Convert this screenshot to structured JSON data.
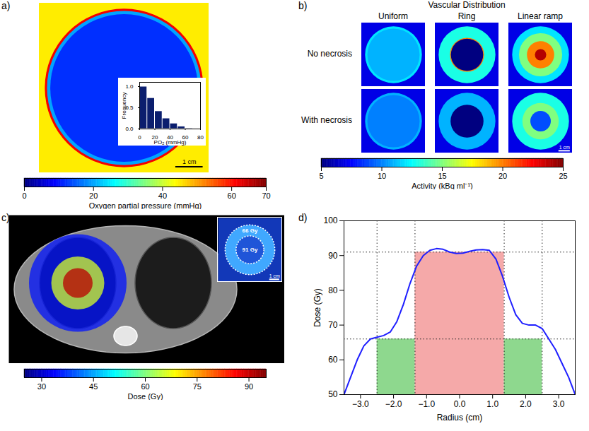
{
  "chart_data": [
    {
      "panel": "a)",
      "type": "heatmap",
      "background": 45,
      "rings": [
        {
          "r": 2.9,
          "v": 62
        },
        {
          "r": 2.82,
          "v": 20
        },
        {
          "r": 2.7,
          "v": 12
        }
      ],
      "colorbar": {
        "label": "Oxygen partial pressure (mmHg)",
        "range": [
          0,
          70
        ],
        "ticks": [
          0,
          20,
          40,
          60,
          70
        ]
      },
      "scale_bar": {
        "length": 1,
        "label": "1 cm"
      },
      "inset": {
        "type": "histogram",
        "xlabel": "PO₂ (mmHg)",
        "ylabel": "Frequency",
        "bins": [
          0,
          10,
          20,
          30,
          40,
          50,
          60,
          70,
          80
        ],
        "counts": [
          1,
          0.73,
          0.42,
          0.25,
          0.13,
          0.06,
          0.02,
          0.01
        ],
        "color": "#0b1e6e",
        "xlim": [
          0,
          80
        ],
        "xticks": [
          0,
          20,
          40,
          60,
          80
        ],
        "ylim": [
          0,
          1.1
        ],
        "yticks": [
          0,
          0.5,
          1
        ]
      }
    },
    {
      "panel": "b)",
      "type": "heatmap_grid",
      "title": "Vascular Distribution",
      "columns": [
        "Uniform",
        "Ring",
        "Linear ramp"
      ],
      "rows": [
        "No necrosis",
        "With necrosis"
      ],
      "background": 7,
      "cells": [
        [
          [
            {
              "r": 2.5,
              "v": 12
            },
            {
              "r": 2.3,
              "v": 11
            }
          ],
          [
            {
              "r": 2.5,
              "v": 13
            },
            {
              "r": 1.5,
              "v": 20
            },
            {
              "r": 1.42,
              "v": 5
            }
          ],
          [
            {
              "r": 2.5,
              "v": 12
            },
            {
              "r": 1.9,
              "v": 15
            },
            {
              "r": 1.2,
              "v": 20
            },
            {
              "r": 0.5,
              "v": 24
            }
          ]
        ],
        [
          [
            {
              "r": 2.5,
              "v": 11
            },
            {
              "r": 2.3,
              "v": 10
            }
          ],
          [
            {
              "r": 2.5,
              "v": 11
            },
            {
              "r": 1.45,
              "v": 5
            }
          ],
          [
            {
              "r": 2.5,
              "v": 13
            },
            {
              "r": 1.6,
              "v": 15
            },
            {
              "r": 0.9,
              "v": 9
            }
          ]
        ]
      ],
      "colorbar": {
        "label": "Activity (kBq ml⁻¹)",
        "range": [
          5,
          25
        ],
        "ticks": [
          5,
          10,
          15,
          20,
          25
        ]
      },
      "scale_bar": {
        "length": 1,
        "label": "1 cm"
      }
    },
    {
      "panel": "c)",
      "type": "dose_map",
      "rings": [
        {
          "r": 4.6,
          "v": 35
        },
        {
          "r": 2.5,
          "v": 66
        },
        {
          "r": 1.4,
          "v": 91
        }
      ],
      "colorbar": {
        "label": "Dose (Gy)",
        "range": [
          25,
          95
        ],
        "ticks": [
          30,
          45,
          60,
          75,
          90
        ]
      },
      "inset": {
        "contours": [
          {
            "r": 2.5,
            "label": "66 Gy"
          },
          {
            "r": 1.4,
            "label": "91 Gy"
          }
        ],
        "scale_bar": {
          "length": 1,
          "label": "1 cm"
        }
      }
    },
    {
      "panel": "d)",
      "type": "line",
      "xlabel": "Radius (cm)",
      "ylabel": "Dose (Gy)",
      "x": [
        -3.5,
        -3.3,
        -3.1,
        -2.9,
        -2.7,
        -2.5,
        -2.3,
        -2.1,
        -1.9,
        -1.7,
        -1.5,
        -1.3,
        -1.1,
        -0.9,
        -0.7,
        -0.5,
        -0.3,
        -0.1,
        0.1,
        0.3,
        0.5,
        0.7,
        0.9,
        1.1,
        1.3,
        1.5,
        1.7,
        1.9,
        2.1,
        2.3,
        2.5,
        2.7,
        2.9,
        3.1,
        3.3,
        3.5
      ],
      "values": [
        50,
        55,
        60,
        64,
        66,
        66.5,
        67,
        68,
        71,
        76,
        82,
        87,
        90,
        91.5,
        92,
        91.8,
        91,
        90.6,
        90.7,
        91.2,
        91.6,
        91.7,
        91.5,
        89,
        84,
        78,
        73,
        70.5,
        70,
        70,
        69,
        66,
        63,
        59,
        55,
        50
      ],
      "color": "#1f1fff",
      "xlim": [
        -3.5,
        3.5
      ],
      "xticks": [
        -3,
        -2,
        -1,
        0,
        1,
        2,
        3
      ],
      "ylim": [
        50,
        100
      ],
      "yticks": [
        50,
        60,
        70,
        80,
        90,
        100
      ],
      "regions": [
        {
          "x1": -1.35,
          "x2": 1.35,
          "y1": 50,
          "y2": 91,
          "color": "#f5a9a9"
        },
        {
          "x1": -2.5,
          "x2": -1.35,
          "y1": 50,
          "y2": 66,
          "color": "#8ed88e"
        },
        {
          "x1": 1.35,
          "x2": 2.5,
          "y1": 50,
          "y2": 66,
          "color": "#8ed88e"
        }
      ],
      "reference_lines": {
        "x": [
          -2.5,
          -1.35,
          1.35,
          2.5
        ],
        "y": [
          66,
          91
        ]
      }
    }
  ]
}
